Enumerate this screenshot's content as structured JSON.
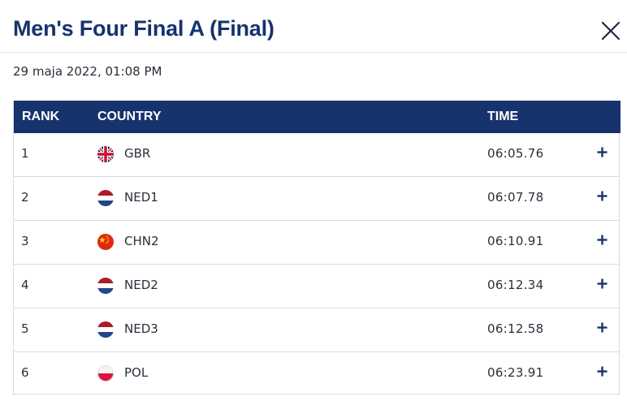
{
  "header": {
    "title": "Men's Four Final A (Final)"
  },
  "datetime": "29 maja 2022, 01:08 PM",
  "table": {
    "columns": {
      "rank": "RANK",
      "country": "COUNTRY",
      "time": "TIME"
    },
    "rows": [
      {
        "rank": "1",
        "country": "GBR",
        "time": "06:05.76",
        "flag_icon": "gbr-flag-icon"
      },
      {
        "rank": "2",
        "country": "NED1",
        "time": "06:07.78",
        "flag_icon": "ned-flag-icon"
      },
      {
        "rank": "3",
        "country": "CHN2",
        "time": "06:10.91",
        "flag_icon": "chn-flag-icon"
      },
      {
        "rank": "4",
        "country": "NED2",
        "time": "06:12.34",
        "flag_icon": "ned-flag-icon"
      },
      {
        "rank": "5",
        "country": "NED3",
        "time": "06:12.58",
        "flag_icon": "ned-flag-icon"
      },
      {
        "rank": "6",
        "country": "POL",
        "time": "06:23.91",
        "flag_icon": "pol-flag-icon"
      }
    ]
  },
  "colors": {
    "brand": "#17336d",
    "border": "#d7dbe3",
    "text": "#2b2f3a"
  }
}
